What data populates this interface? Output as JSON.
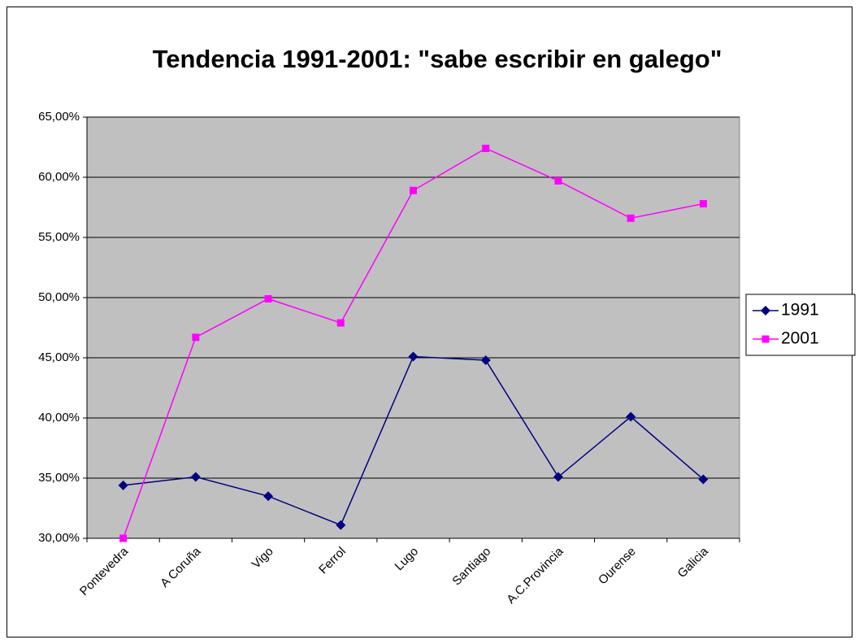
{
  "chart_data": {
    "type": "line",
    "title": "Tendencia 1991-2001: \"sabe escribir en galego\"",
    "categories": [
      "Pontevedra",
      "A Coruña",
      "Vigo",
      "Ferrol",
      "Lugo",
      "Santiago",
      "A.C.Provincia",
      "Ourense",
      "Galicia"
    ],
    "series": [
      {
        "name": "1991",
        "color": "#000080",
        "marker": "diamond",
        "values": [
          34.4,
          35.1,
          33.5,
          31.1,
          45.1,
          44.8,
          35.1,
          40.1,
          34.9
        ]
      },
      {
        "name": "2001",
        "color": "#ff00ff",
        "marker": "square",
        "values": [
          30.0,
          46.7,
          49.9,
          47.9,
          58.9,
          62.4,
          59.7,
          56.6,
          57.8
        ]
      }
    ],
    "ylim": [
      30,
      65
    ],
    "yticks": [
      {
        "value": 30,
        "label": "30,00%"
      },
      {
        "value": 35,
        "label": "35,00%"
      },
      {
        "value": 40,
        "label": "40,00%"
      },
      {
        "value": 45,
        "label": "45,00%"
      },
      {
        "value": 50,
        "label": "50,00%"
      },
      {
        "value": 55,
        "label": "55,00%"
      },
      {
        "value": 60,
        "label": "60,00%"
      },
      {
        "value": 65,
        "label": "65,00%"
      }
    ],
    "grid": true,
    "legend": "right"
  }
}
